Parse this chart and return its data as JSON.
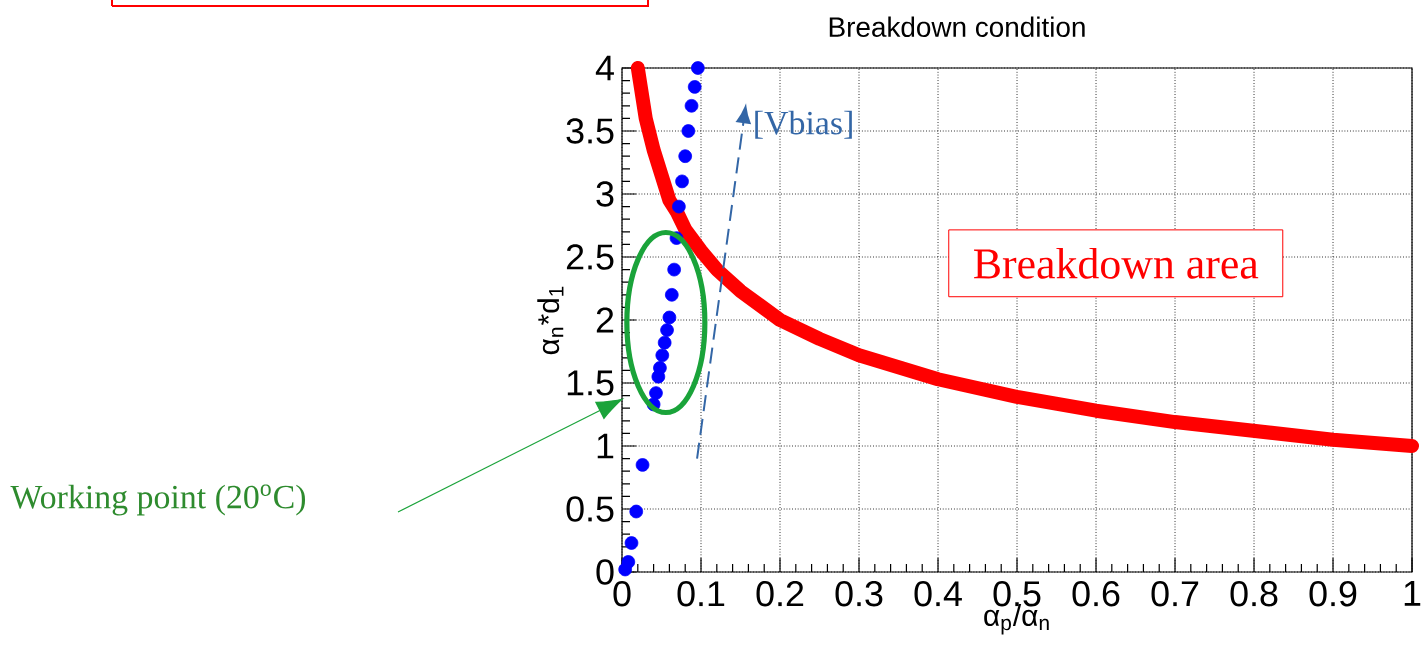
{
  "chart_data": {
    "type": "scatter",
    "title": "Breakdown condition",
    "xlabel": "α$_{p}$/α$_{n}$",
    "ylabel": "α$_{n}$*d$_{1}$",
    "xlim": [
      0,
      1
    ],
    "ylim": [
      0,
      4
    ],
    "xticks": [
      0,
      0.1,
      0.2,
      0.3,
      0.4,
      0.5,
      0.6,
      0.7,
      0.8,
      0.9,
      1
    ],
    "yticks": [
      0,
      0.5,
      1,
      1.5,
      2,
      2.5,
      3,
      3.5,
      4
    ],
    "grid": true,
    "series": [
      {
        "type": "line",
        "marker": "none",
        "color": "#ff0000",
        "x": [
          0.02,
          0.03,
          0.04,
          0.05,
          0.06,
          0.07,
          0.08,
          0.1,
          0.12,
          0.15,
          0.2,
          0.25,
          0.3,
          0.4,
          0.5,
          0.6,
          0.7,
          0.8,
          0.9,
          1.0
        ],
        "values": [
          4.0,
          3.6,
          3.35,
          3.15,
          2.95,
          2.85,
          2.72,
          2.55,
          2.4,
          2.23,
          2.0,
          1.85,
          1.72,
          1.53,
          1.39,
          1.28,
          1.19,
          1.12,
          1.05,
          1.0
        ]
      },
      {
        "marker": "circle",
        "color": "#0000ff",
        "x": [
          0.004,
          0.008,
          0.012,
          0.018,
          0.026,
          0.04,
          0.043,
          0.046,
          0.048,
          0.051,
          0.054,
          0.057,
          0.06,
          0.063,
          0.066,
          0.069,
          0.072,
          0.076,
          0.08,
          0.084,
          0.088,
          0.092,
          0.096
        ],
        "values": [
          0.02,
          0.08,
          0.23,
          0.48,
          0.85,
          1.33,
          1.42,
          1.55,
          1.62,
          1.72,
          1.82,
          1.92,
          2.02,
          2.2,
          2.4,
          2.65,
          2.9,
          3.1,
          3.3,
          3.5,
          3.7,
          3.85,
          4.0
        ]
      }
    ],
    "annotations": [
      "[Vbias]",
      "Breakdown area",
      "Working point (20$^{o}$C)"
    ]
  }
}
